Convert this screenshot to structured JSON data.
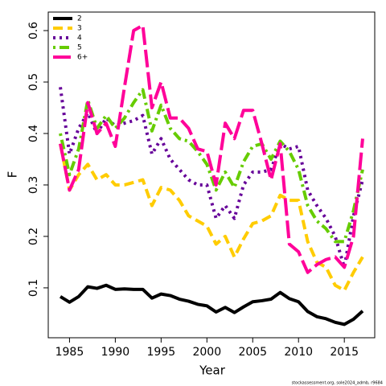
{
  "chart_data": {
    "type": "line",
    "xlabel": "Year",
    "ylabel": "F",
    "footer": "stockassessment.org, sole2024_admb, r9684",
    "x": [
      1984,
      1985,
      1986,
      1987,
      1988,
      1989,
      1990,
      1991,
      1992,
      1993,
      1994,
      1995,
      1996,
      1997,
      1998,
      1999,
      2000,
      2001,
      2002,
      2003,
      2004,
      2005,
      2006,
      2007,
      2008,
      2009,
      2010,
      2011,
      2012,
      2013,
      2014,
      2015,
      2016,
      2017
    ],
    "xlim": [
      1982.68,
      2018.32
    ],
    "xticks": [
      1985,
      1990,
      1995,
      2000,
      2005,
      2010,
      2015
    ],
    "ylim": [
      0.003,
      0.636
    ],
    "yticks": [
      0.1,
      0.2,
      0.3,
      0.4,
      0.5,
      0.6
    ],
    "legend": "topleft",
    "series": [
      {
        "name": "2",
        "color": "#000000",
        "linestyle": "solid",
        "values": [
          0.083,
          0.072,
          0.083,
          0.102,
          0.099,
          0.105,
          0.097,
          0.098,
          0.097,
          0.097,
          0.08,
          0.088,
          0.085,
          0.078,
          0.074,
          0.068,
          0.065,
          0.053,
          0.062,
          0.052,
          0.063,
          0.073,
          0.075,
          0.078,
          0.091,
          0.079,
          0.073,
          0.054,
          0.044,
          0.04,
          0.033,
          0.029,
          0.039,
          0.055
        ]
      },
      {
        "name": "3",
        "color": "#ffcc00",
        "linestyle": "dashed",
        "values": [
          0.38,
          0.29,
          0.32,
          0.34,
          0.31,
          0.32,
          0.3,
          0.3,
          0.305,
          0.31,
          0.26,
          0.295,
          0.29,
          0.27,
          0.24,
          0.23,
          0.22,
          0.185,
          0.2,
          0.16,
          0.195,
          0.225,
          0.23,
          0.24,
          0.28,
          0.27,
          0.27,
          0.19,
          0.15,
          0.14,
          0.105,
          0.095,
          0.13,
          0.16
        ]
      },
      {
        "name": "4",
        "color": "#660099",
        "linestyle": "dotted",
        "values": [
          0.49,
          0.36,
          0.41,
          0.44,
          0.4,
          0.43,
          0.415,
          0.42,
          0.425,
          0.435,
          0.36,
          0.39,
          0.35,
          0.33,
          0.31,
          0.3,
          0.3,
          0.235,
          0.26,
          0.235,
          0.3,
          0.325,
          0.325,
          0.33,
          0.38,
          0.37,
          0.375,
          0.29,
          0.26,
          0.235,
          0.2,
          0.14,
          0.24,
          0.31
        ]
      },
      {
        "name": "5",
        "color": "#66cc00",
        "linestyle": "dotdash",
        "values": [
          0.4,
          0.32,
          0.37,
          0.465,
          0.41,
          0.435,
          0.41,
          0.43,
          0.46,
          0.485,
          0.405,
          0.455,
          0.41,
          0.39,
          0.385,
          0.365,
          0.34,
          0.29,
          0.325,
          0.295,
          0.345,
          0.375,
          0.38,
          0.35,
          0.385,
          0.365,
          0.33,
          0.26,
          0.23,
          0.215,
          0.19,
          0.19,
          0.25,
          0.33
        ]
      },
      {
        "name": "6+",
        "color": "#ff0099",
        "linestyle": "longdash",
        "values": [
          0.38,
          0.29,
          0.33,
          0.46,
          0.4,
          0.42,
          0.375,
          0.49,
          0.6,
          0.61,
          0.45,
          0.5,
          0.43,
          0.43,
          0.41,
          0.37,
          0.365,
          0.3,
          0.42,
          0.39,
          0.445,
          0.445,
          0.38,
          0.31,
          0.38,
          0.185,
          0.17,
          0.13,
          0.145,
          0.155,
          0.16,
          0.14,
          0.2,
          0.39
        ]
      }
    ]
  }
}
